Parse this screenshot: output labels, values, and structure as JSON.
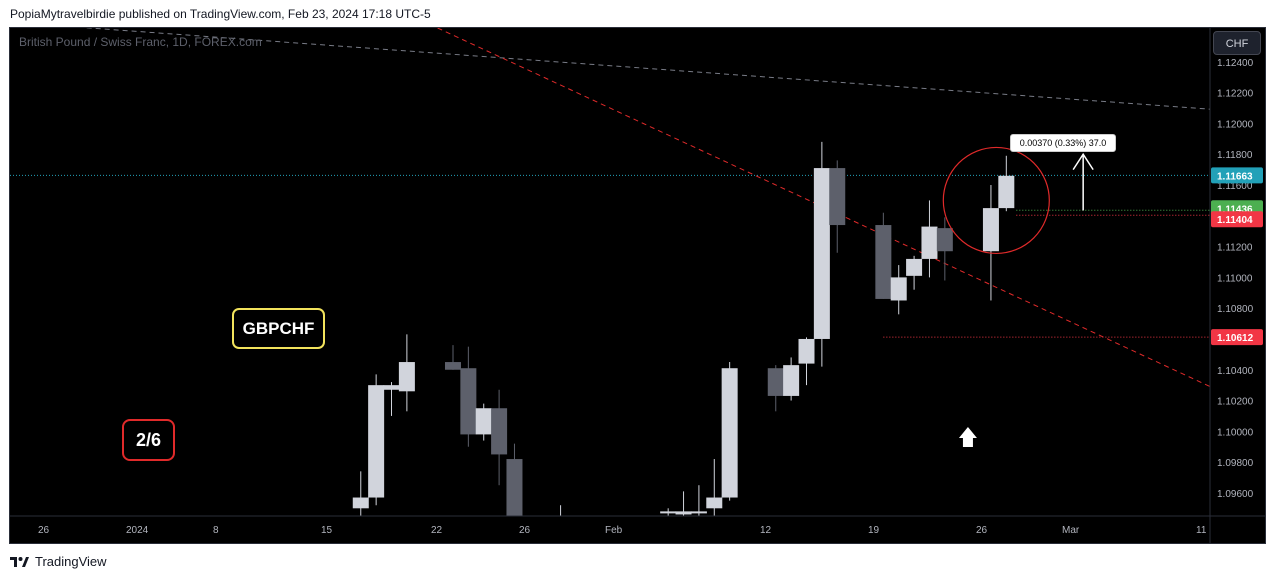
{
  "header": {
    "published_text": "PopiaMytravelbirdie published on TradingView.com, Feb 23, 2024 17:18 UTC-5"
  },
  "footer": {
    "brand": "TradingView",
    "icon": "tradingview-logo-icon"
  },
  "chart": {
    "symbol_title": "British Pound / Swiss Franc, 1D, FOREX.com",
    "currency_button": "CHF",
    "badge_pair": "GBPCHF",
    "badge_count": "2/6",
    "measure_label": "0.00370 (0.33%) 37.0",
    "icons": [
      "white-up-arrow-icon",
      "up-arrow-annotation-icon"
    ]
  },
  "colors": {
    "background": "#000000",
    "candle_up": "#d1d4dc",
    "candle_down": "#5d606b",
    "trendline": "#e02a2a",
    "last_price": "#22a1b8",
    "green_label": "#4caf50",
    "red_label": "#f23645",
    "badge_yellow": "#f2e35c"
  },
  "chart_data": {
    "type": "candlestick",
    "title": "British Pound / Swiss Franc, 1D, FOREX.com",
    "ylim": [
      1.0945,
      1.1262
    ],
    "y_ticks": [
      1.096,
      1.098,
      1.1,
      1.102,
      1.104,
      1.106,
      1.108,
      1.11,
      1.112,
      1.114,
      1.116,
      1.118,
      1.12,
      1.122,
      1.124
    ],
    "x_ticks": [
      "26",
      "2024",
      "8",
      "15",
      "22",
      "26",
      "Feb",
      "12",
      "19",
      "26",
      "Mar",
      "11"
    ],
    "candles": [
      {
        "d": "2024-01-16",
        "o": 1.095,
        "h": 1.0974,
        "l": 1.0945,
        "c": 1.0957
      },
      {
        "d": "2024-01-17",
        "o": 1.0957,
        "h": 1.1037,
        "l": 1.0952,
        "c": 1.103
      },
      {
        "d": "2024-01-18",
        "o": 1.1027,
        "h": 1.1032,
        "l": 1.101,
        "c": 1.103
      },
      {
        "d": "2024-01-19",
        "o": 1.1026,
        "h": 1.1063,
        "l": 1.1013,
        "c": 1.1045
      },
      {
        "d": "2024-01-22",
        "o": 1.1045,
        "h": 1.1056,
        "l": 1.104,
        "c": 1.104
      },
      {
        "d": "2024-01-23",
        "o": 1.1041,
        "h": 1.1055,
        "l": 1.099,
        "c": 1.0998
      },
      {
        "d": "2024-01-24",
        "o": 1.0998,
        "h": 1.1018,
        "l": 1.0994,
        "c": 1.1015
      },
      {
        "d": "2024-01-25",
        "o": 1.1015,
        "h": 1.1027,
        "l": 1.0965,
        "c": 1.0985
      },
      {
        "d": "2024-01-26",
        "o": 1.0982,
        "h": 1.0992,
        "l": 1.0945,
        "c": 1.0945
      },
      {
        "d": "2024-01-29",
        "o": 1.0945,
        "h": 1.0952,
        "l": 1.0945,
        "c": 1.0945
      },
      {
        "d": "2024-02-05",
        "o": 1.0947,
        "h": 1.095,
        "l": 1.0945,
        "c": 1.0948
      },
      {
        "d": "2024-02-06",
        "o": 1.0946,
        "h": 1.0961,
        "l": 1.0945,
        "c": 1.0948
      },
      {
        "d": "2024-02-07",
        "o": 1.0948,
        "h": 1.0965,
        "l": 1.0945,
        "c": 1.0948
      },
      {
        "d": "2024-02-08",
        "o": 1.095,
        "h": 1.0982,
        "l": 1.0945,
        "c": 1.0957
      },
      {
        "d": "2024-02-09",
        "o": 1.0957,
        "h": 1.1045,
        "l": 1.0955,
        "c": 1.1041
      },
      {
        "d": "2024-02-12",
        "o": 1.1041,
        "h": 1.1043,
        "l": 1.1013,
        "c": 1.1023
      },
      {
        "d": "2024-02-13",
        "o": 1.1023,
        "h": 1.1048,
        "l": 1.102,
        "c": 1.1043
      },
      {
        "d": "2024-02-14",
        "o": 1.1044,
        "h": 1.1061,
        "l": 1.103,
        "c": 1.106
      },
      {
        "d": "2024-02-15",
        "o": 1.106,
        "h": 1.1188,
        "l": 1.1042,
        "c": 1.1171
      },
      {
        "d": "2024-02-16",
        "o": 1.1171,
        "h": 1.1176,
        "l": 1.1116,
        "c": 1.1134
      },
      {
        "d": "2024-02-19",
        "o": 1.1134,
        "h": 1.1142,
        "l": 1.1086,
        "c": 1.1086
      },
      {
        "d": "2024-02-20",
        "o": 1.1085,
        "h": 1.1108,
        "l": 1.1076,
        "c": 1.11
      },
      {
        "d": "2024-02-21",
        "o": 1.1101,
        "h": 1.1114,
        "l": 1.1092,
        "c": 1.1112
      },
      {
        "d": "2024-02-22",
        "o": 1.1112,
        "h": 1.115,
        "l": 1.11,
        "c": 1.1133
      },
      {
        "d": "2024-02-23",
        "o": 1.1132,
        "h": 1.1139,
        "l": 1.1098,
        "c": 1.1117
      },
      {
        "d": "2024-02-26",
        "o": 1.1117,
        "h": 1.116,
        "l": 1.1085,
        "c": 1.1145
      },
      {
        "d": "2024-02-27",
        "o": 1.1145,
        "h": 1.1179,
        "l": 1.1143,
        "c": 1.1166
      }
    ],
    "price_labels": [
      {
        "value": 1.11663,
        "text": "1.11663",
        "color": "#22a1b8"
      },
      {
        "value": 1.11436,
        "text": "1.11436",
        "color": "#4caf50"
      },
      {
        "value": 1.11404,
        "text": "1.11404",
        "color": "#f23645"
      },
      {
        "value": 1.10612,
        "text": "1.10612",
        "color": "#f23645"
      }
    ],
    "lines": {
      "last_price": 1.11663,
      "support_level": 1.10612,
      "red_level": 1.11404,
      "green_level": 1.11436
    },
    "annotations": {
      "measure": "0.00370 (0.33%) 37.0",
      "badge_pair": "GBPCHF",
      "badge_count": "2/6"
    }
  }
}
